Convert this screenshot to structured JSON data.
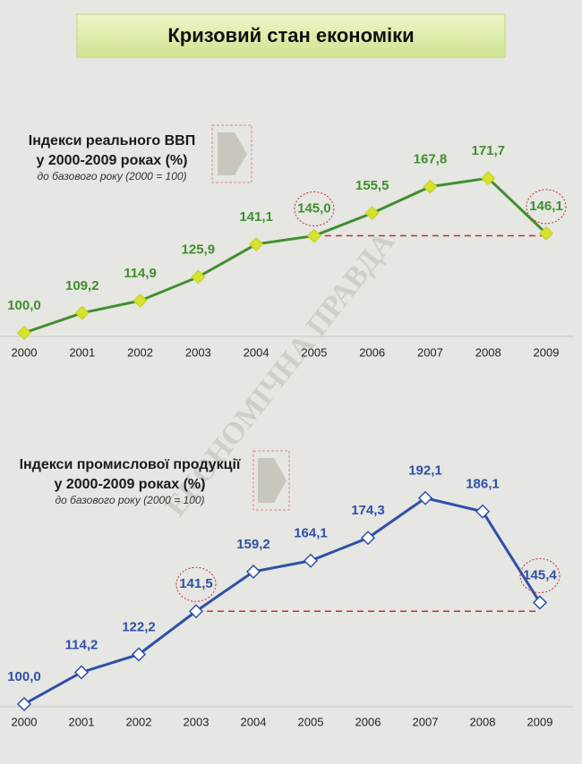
{
  "title": "Кризовий стан економіки",
  "watermark": "ЕКОНОМІЧНА ПРАВДА",
  "chart_data": [
    {
      "type": "line",
      "title": [
        "Індекси реального ВВП",
        "у 2000-2009 роках (%)"
      ],
      "subtitle": "до базового року (2000 = 100)",
      "categories": [
        "2000",
        "2001",
        "2002",
        "2003",
        "2004",
        "2005",
        "2006",
        "2007",
        "2008",
        "2009"
      ],
      "values": [
        100.0,
        109.2,
        114.9,
        125.9,
        141.1,
        145.0,
        155.5,
        167.8,
        171.7,
        146.1
      ],
      "value_labels": [
        "100,0",
        "109,2",
        "114,9",
        "125,9",
        "141,1",
        "145,0",
        "155,5",
        "167,8",
        "171,7",
        "146,1"
      ],
      "color": "#3f8f2f",
      "marker_fill": "#d6e22e",
      "highlight": [
        "2005",
        "2009"
      ]
    },
    {
      "type": "line",
      "title": [
        "Індекси промислової продукції",
        "у 2000-2009 роках (%)"
      ],
      "subtitle": "до базового року (2000 = 100)",
      "categories": [
        "2000",
        "2001",
        "2002",
        "2003",
        "2004",
        "2005",
        "2006",
        "2007",
        "2008",
        "2009"
      ],
      "values": [
        100.0,
        114.2,
        122.2,
        141.5,
        159.2,
        164.1,
        174.3,
        192.1,
        186.1,
        145.4
      ],
      "value_labels": [
        "100,0",
        "114,2",
        "122,2",
        "141,5",
        "159,2",
        "164,1",
        "174,3",
        "192,1",
        "186,1",
        "145,4"
      ],
      "color": "#2f50a8",
      "marker_fill": "#ffffff",
      "highlight": [
        "2003",
        "2009"
      ]
    }
  ]
}
